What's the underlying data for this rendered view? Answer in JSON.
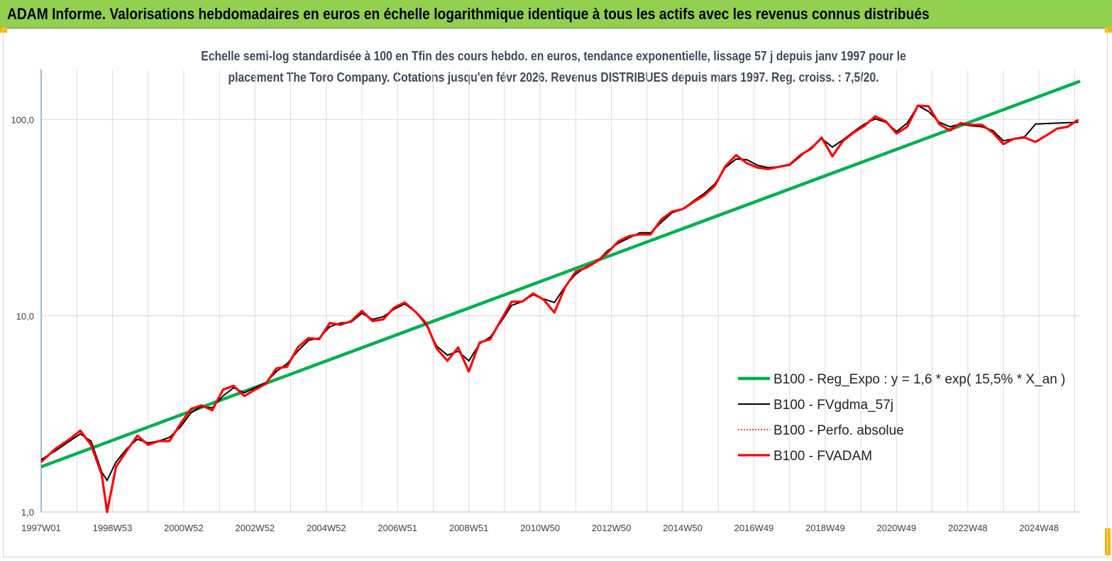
{
  "header": {
    "title": "ADAM Informe. Valorisations hebdomadaires en euros en échelle logarithmique identique à tous les actifs avec les revenus connus distribués"
  },
  "chart_data": {
    "type": "line",
    "subtitle_lines": [
      "Echelle semi-log standardisée à 100 en Tfin des cours hebdo. en euros, tendance exponentielle, lissage 57 j depuis janv 1997 pour le",
      "placement The Toro Company. Cotations jusqu'en févr 2026.  Revenus DISTRIBUES depuis mars 1997. Reg. croiss. : 7,5/20."
    ],
    "y_scale": "log",
    "ylim": [
      1.0,
      180.0
    ],
    "xlim": [
      1997.0,
      2026.15
    ],
    "y_tick_labels": [
      "1,0",
      "10,0",
      "100,0"
    ],
    "y_tick_values": [
      1,
      10,
      100
    ],
    "x_tick_labels": [
      "1997W01",
      "1998W53",
      "2000W52",
      "2002W52",
      "2004W52",
      "2006W51",
      "2008W51",
      "2010W50",
      "2012W50",
      "2014W50",
      "2016W49",
      "2018W49",
      "2020W49",
      "2022W48",
      "2024W48"
    ],
    "x_tick_values": [
      1997.0,
      1999.0,
      2001.0,
      2003.0,
      2005.0,
      2007.0,
      2009.0,
      2011.0,
      2013.0,
      2015.0,
      2017.0,
      2019.0,
      2021.0,
      2023.0,
      2025.0
    ],
    "grid": "vertical",
    "legend_position": "right",
    "colors": {
      "regression": "#00b050",
      "smoothed": "#000000",
      "perfo": "#ff0000",
      "fvadam": "#ff0000",
      "axis": "#4472c4"
    },
    "series": [
      {
        "name": "B100 - Reg_Expo : y = 1,6 * exp( 15,5% *  X_an )",
        "style": "thick-green",
        "x": [
          1997.0,
          2026.15
        ],
        "y": [
          1.7,
          157
        ]
      },
      {
        "name": "B100 - FVgdma_57j",
        "style": "thin-black",
        "x": [
          1997.0,
          1997.4,
          1997.8,
          1998.1,
          1998.4,
          1998.7,
          1998.85,
          1999.1,
          1999.4,
          1999.7,
          2000.0,
          2000.3,
          2000.6,
          2000.9,
          2001.2,
          2001.5,
          2001.8,
          2002.1,
          2002.4,
          2002.7,
          2003.0,
          2003.3,
          2003.6,
          2003.9,
          2004.2,
          2004.5,
          2004.8,
          2005.1,
          2005.4,
          2005.7,
          2006.0,
          2006.3,
          2006.6,
          2006.9,
          2007.2,
          2007.5,
          2007.8,
          2008.1,
          2008.4,
          2008.7,
          2009.0,
          2009.3,
          2009.6,
          2009.9,
          2010.2,
          2010.5,
          2010.8,
          2011.1,
          2011.4,
          2011.7,
          2012.0,
          2012.3,
          2012.6,
          2012.9,
          2013.2,
          2013.5,
          2013.8,
          2014.1,
          2014.4,
          2014.7,
          2015.0,
          2015.3,
          2015.6,
          2015.9,
          2016.2,
          2016.5,
          2016.8,
          2017.1,
          2017.4,
          2017.7,
          2018.0,
          2018.3,
          2018.6,
          2018.9,
          2019.2,
          2019.5,
          2019.8,
          2020.1,
          2020.4,
          2020.7,
          2021.0,
          2021.3,
          2021.6,
          2021.9,
          2022.2,
          2022.5,
          2022.8,
          2023.1,
          2023.4,
          2023.7,
          2024.0,
          2024.3,
          2024.6,
          2024.9,
          2025.2,
          2025.5,
          2025.8,
          2026.1
        ],
        "y": [
          1.85,
          2.05,
          2.3,
          2.5,
          2.3,
          1.6,
          1.45,
          1.8,
          2.1,
          2.35,
          2.25,
          2.3,
          2.4,
          2.7,
          3.2,
          3.45,
          3.4,
          3.9,
          4.3,
          4.05,
          4.3,
          4.55,
          5.2,
          5.7,
          6.6,
          7.5,
          7.7,
          8.8,
          9.2,
          9.3,
          10.3,
          9.6,
          9.9,
          10.8,
          11.5,
          10.5,
          9.0,
          7.0,
          6.3,
          6.6,
          5.9,
          7.2,
          7.8,
          9.3,
          11.3,
          11.8,
          12.8,
          12.2,
          11.7,
          14.1,
          16.3,
          17.8,
          19.0,
          21.5,
          23.5,
          25.0,
          26.5,
          26.5,
          30.0,
          33.5,
          35.0,
          38.5,
          42.0,
          47.0,
          57.0,
          63.0,
          62.5,
          58.5,
          57.0,
          57.5,
          58.5,
          65.0,
          72.0,
          80.0,
          72.5,
          79.0,
          87.0,
          95.0,
          101.0,
          97.0,
          87.0,
          96.0,
          118.0,
          110.0,
          97.0,
          92.0,
          95.0,
          93.0,
          92.0,
          88.0,
          78.0,
          80.0,
          82.0,
          95.0,
          95.5,
          96.0,
          96.5,
          97.0
        ]
      },
      {
        "name": "B100 - Perfo. absolue",
        "style": "dotted-red",
        "x": [],
        "y": []
      },
      {
        "name": "B100 - FVADAM",
        "style": "thick-red",
        "x": [
          1997.0,
          1997.4,
          1997.8,
          1998.1,
          1998.4,
          1998.7,
          1998.85,
          1999.1,
          1999.4,
          1999.7,
          2000.0,
          2000.3,
          2000.6,
          2000.9,
          2001.2,
          2001.5,
          2001.8,
          2002.1,
          2002.4,
          2002.7,
          2003.0,
          2003.3,
          2003.6,
          2003.9,
          2004.2,
          2004.5,
          2004.8,
          2005.1,
          2005.4,
          2005.7,
          2006.0,
          2006.3,
          2006.6,
          2006.9,
          2007.2,
          2007.5,
          2007.8,
          2008.1,
          2008.4,
          2008.7,
          2009.0,
          2009.3,
          2009.6,
          2009.9,
          2010.2,
          2010.5,
          2010.8,
          2011.1,
          2011.4,
          2011.7,
          2012.0,
          2012.3,
          2012.6,
          2012.9,
          2013.2,
          2013.5,
          2013.8,
          2014.1,
          2014.4,
          2014.7,
          2015.0,
          2015.3,
          2015.6,
          2015.9,
          2016.2,
          2016.5,
          2016.8,
          2017.1,
          2017.4,
          2017.7,
          2018.0,
          2018.3,
          2018.6,
          2018.9,
          2019.2,
          2019.5,
          2019.8,
          2020.1,
          2020.4,
          2020.7,
          2021.0,
          2021.3,
          2021.6,
          2021.9,
          2022.2,
          2022.5,
          2022.8,
          2023.1,
          2023.4,
          2023.7,
          2024.0,
          2024.3,
          2024.6,
          2024.9,
          2025.2,
          2025.5,
          2025.8,
          2026.1
        ],
        "y": [
          1.8,
          2.1,
          2.35,
          2.6,
          2.2,
          1.55,
          1.0,
          1.7,
          2.05,
          2.45,
          2.2,
          2.3,
          2.3,
          2.8,
          3.35,
          3.5,
          3.3,
          4.2,
          4.4,
          3.9,
          4.2,
          4.5,
          5.4,
          5.5,
          6.9,
          7.7,
          7.6,
          9.2,
          9.0,
          9.4,
          10.6,
          9.4,
          9.6,
          11.0,
          11.7,
          10.5,
          9.2,
          6.8,
          5.9,
          6.9,
          5.2,
          7.3,
          7.6,
          9.5,
          11.8,
          11.8,
          13.0,
          12.1,
          10.4,
          14.0,
          16.8,
          17.6,
          19.0,
          21.0,
          24.0,
          25.5,
          26.0,
          26.0,
          31.0,
          34.0,
          35.0,
          38.0,
          41.0,
          46.0,
          58.0,
          66.0,
          60.0,
          57.0,
          56.0,
          57.5,
          59.0,
          66.0,
          71.0,
          81.0,
          65.0,
          78.0,
          86.0,
          93.0,
          104.0,
          98.0,
          85.0,
          92.0,
          118.0,
          117.0,
          95.0,
          88.0,
          96.0,
          94.0,
          94.0,
          86.0,
          75.0,
          80.0,
          81.0,
          77.0,
          83.0,
          90.0,
          92.0,
          100.0
        ]
      }
    ]
  }
}
